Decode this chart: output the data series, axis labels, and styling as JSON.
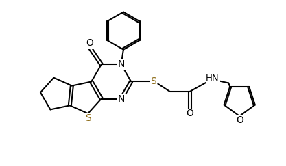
{
  "bg_color": "#ffffff",
  "line_color": "#000000",
  "sulfur_color": "#8B6914",
  "bond_lw": 1.5,
  "figsize": [
    4.17,
    2.43
  ],
  "dpi": 100,
  "xlim": [
    0.0,
    10.0
  ],
  "ylim": [
    0.0,
    6.0
  ]
}
